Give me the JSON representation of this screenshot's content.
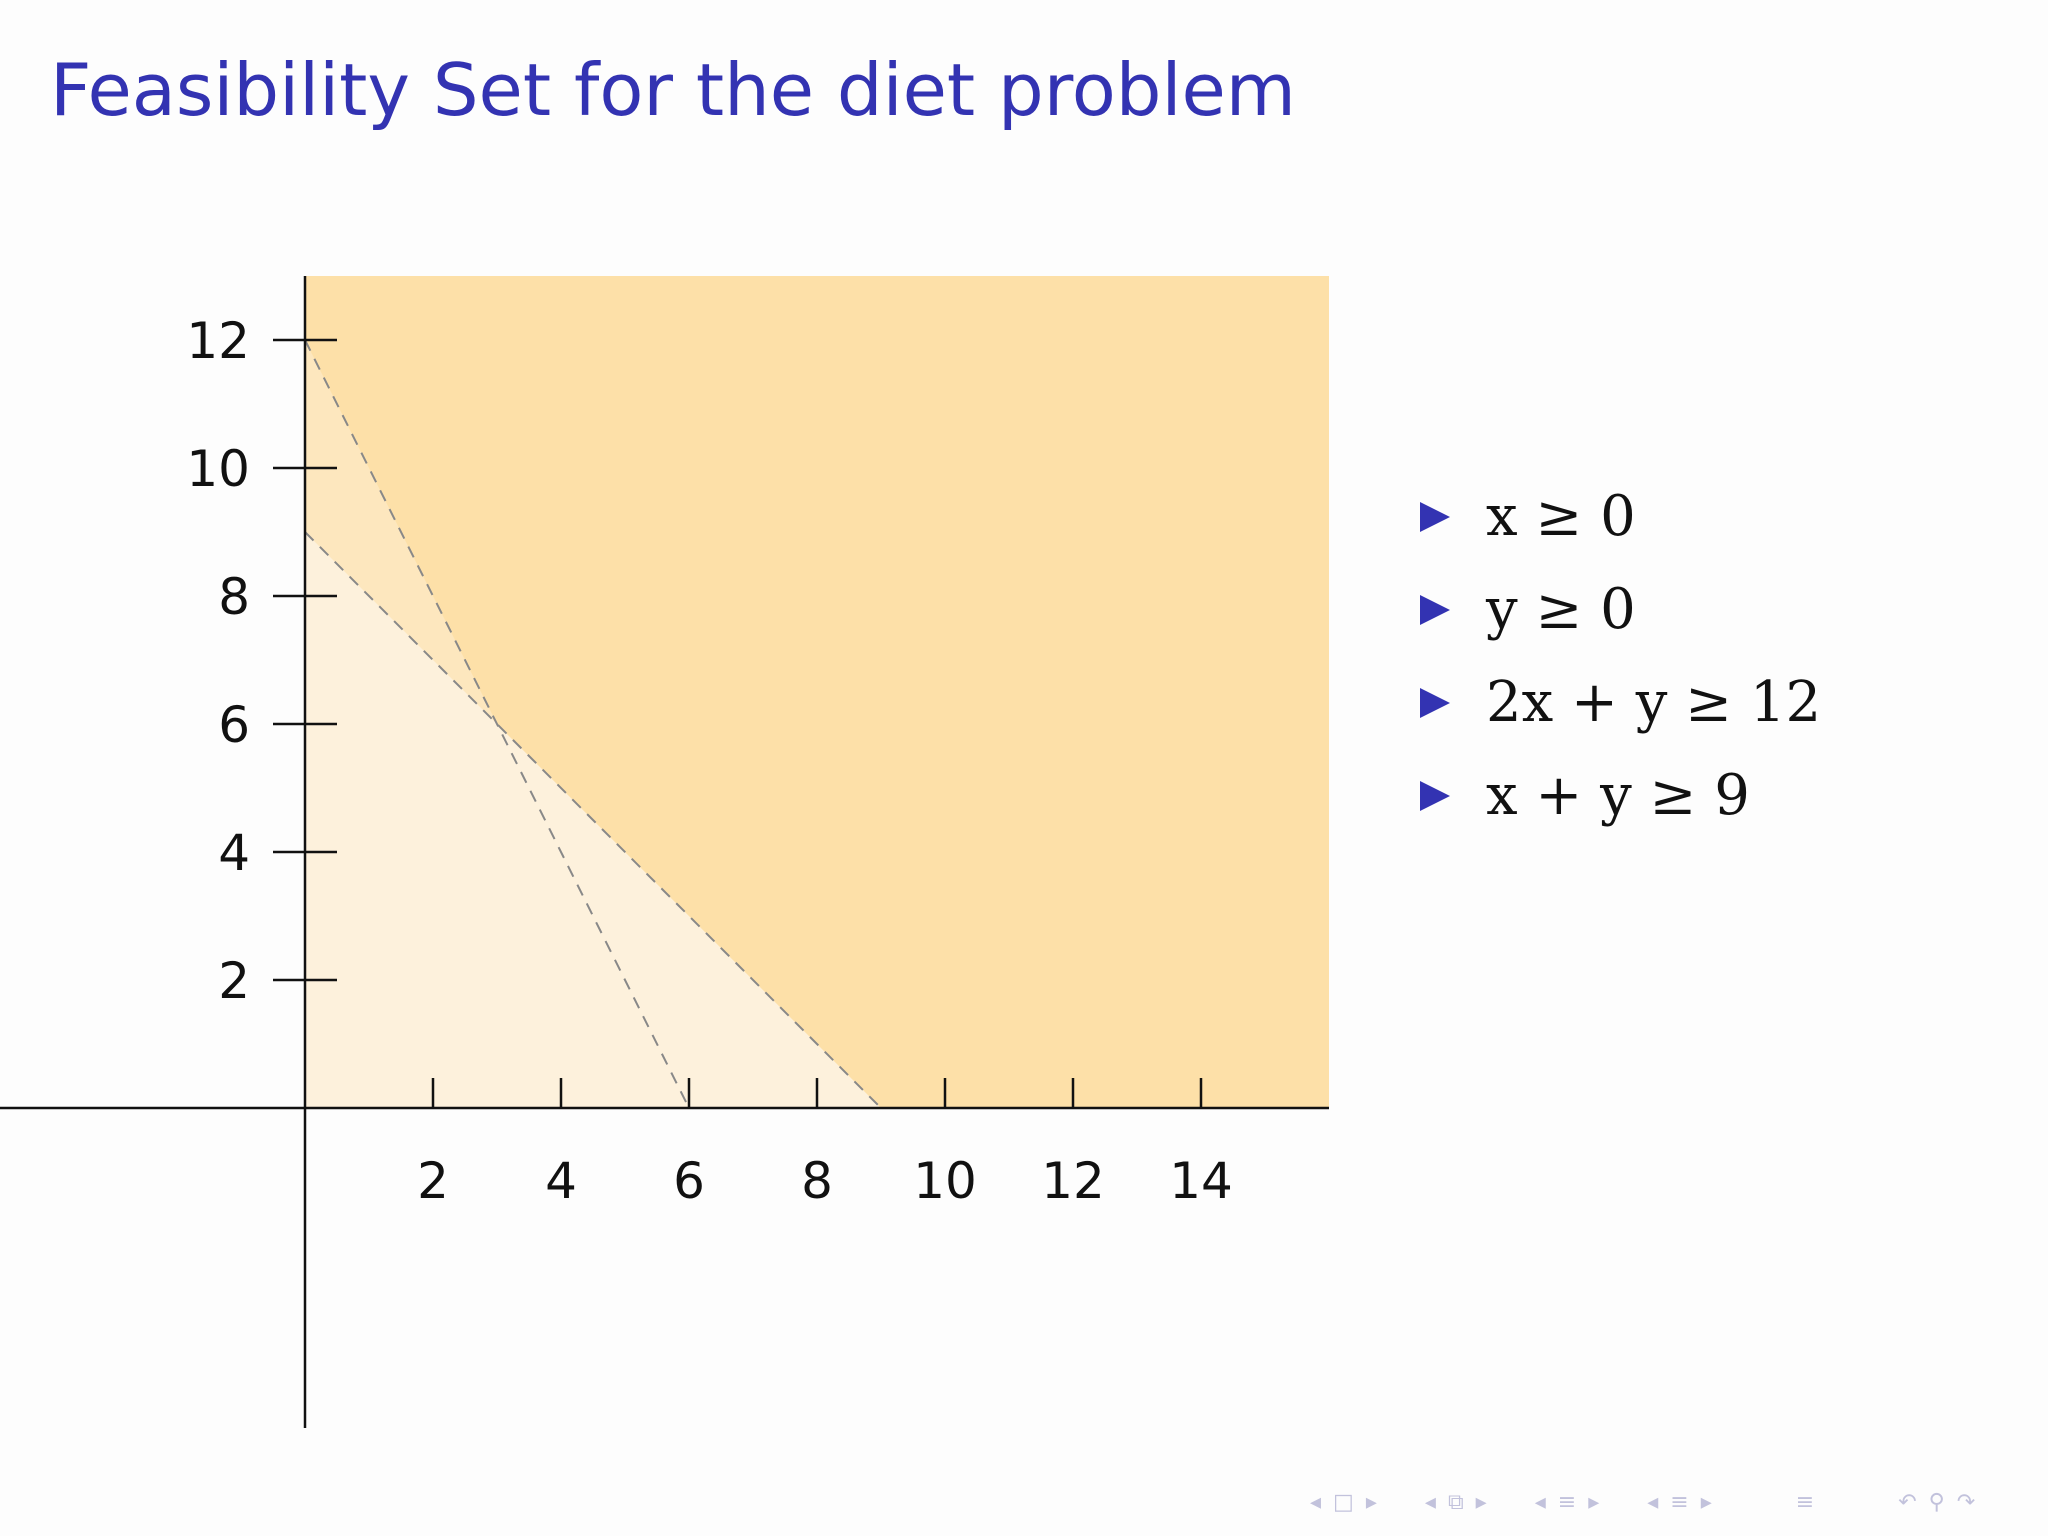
{
  "slide": {
    "title": "Feasibility Set for the diet problem"
  },
  "chart_data": {
    "type": "area",
    "xlim": [
      -5,
      16
    ],
    "ylim": [
      -5,
      13
    ],
    "x_ticks": [
      2,
      4,
      6,
      8,
      10,
      12,
      14
    ],
    "y_ticks": [
      2,
      4,
      6,
      8,
      10,
      12
    ],
    "x_tick_labels": [
      "2",
      "4",
      "6",
      "8",
      "10",
      "12",
      "14"
    ],
    "y_tick_labels": [
      "2",
      "4",
      "6",
      "8",
      "10",
      "12"
    ],
    "constraint_lines": [
      {
        "expression": "2x + y = 12",
        "points": [
          [
            0,
            12
          ],
          [
            6,
            0
          ]
        ]
      },
      {
        "expression": "x + y = 9",
        "points": [
          [
            0,
            9
          ],
          [
            9,
            0
          ]
        ]
      }
    ],
    "shaded_regions": [
      {
        "role": "x ≥ 0, y ≥ 0",
        "color": "#fdf1dc",
        "polygon": [
          [
            0,
            0
          ],
          [
            16,
            0
          ],
          [
            16,
            13
          ],
          [
            0,
            13
          ]
        ]
      },
      {
        "role": "x + y ≥ 9",
        "color": "#fde7be",
        "polygon": [
          [
            9,
            0
          ],
          [
            16,
            0
          ],
          [
            16,
            13
          ],
          [
            0,
            13
          ],
          [
            0,
            9
          ]
        ]
      },
      {
        "role": "feasible set",
        "color": "#fde0a8",
        "polygon": [
          [
            9,
            0
          ],
          [
            16,
            0
          ],
          [
            16,
            13
          ],
          [
            0,
            13
          ],
          [
            0,
            12
          ],
          [
            3,
            6
          ]
        ]
      }
    ],
    "grid": false,
    "line_style": "dashed",
    "line_color": "#888888"
  },
  "constraints": [
    {
      "text": "x ≥ 0"
    },
    {
      "text": "y ≥ 0"
    },
    {
      "text": "2x + y ≥ 12"
    },
    {
      "text": "x + y ≥ 9"
    }
  ],
  "colors": {
    "title": "#3333b2",
    "bullet": "#3333b2",
    "nav": "#c2c2dc"
  },
  "navigation": {
    "icons": [
      "nav-prev-frame-icon",
      "nav-frame-icon",
      "nav-next-frame-icon",
      "nav-prev-subsection-icon",
      "nav-subsection-icon",
      "nav-next-subsection-icon",
      "nav-prev-section-icon",
      "nav-section-icon",
      "nav-next-section-icon",
      "nav-prev-presentation-icon",
      "nav-presentation-icon",
      "nav-next-presentation-icon",
      "nav-toc-icon",
      "nav-back-icon",
      "nav-search-icon",
      "nav-forward-icon"
    ]
  }
}
